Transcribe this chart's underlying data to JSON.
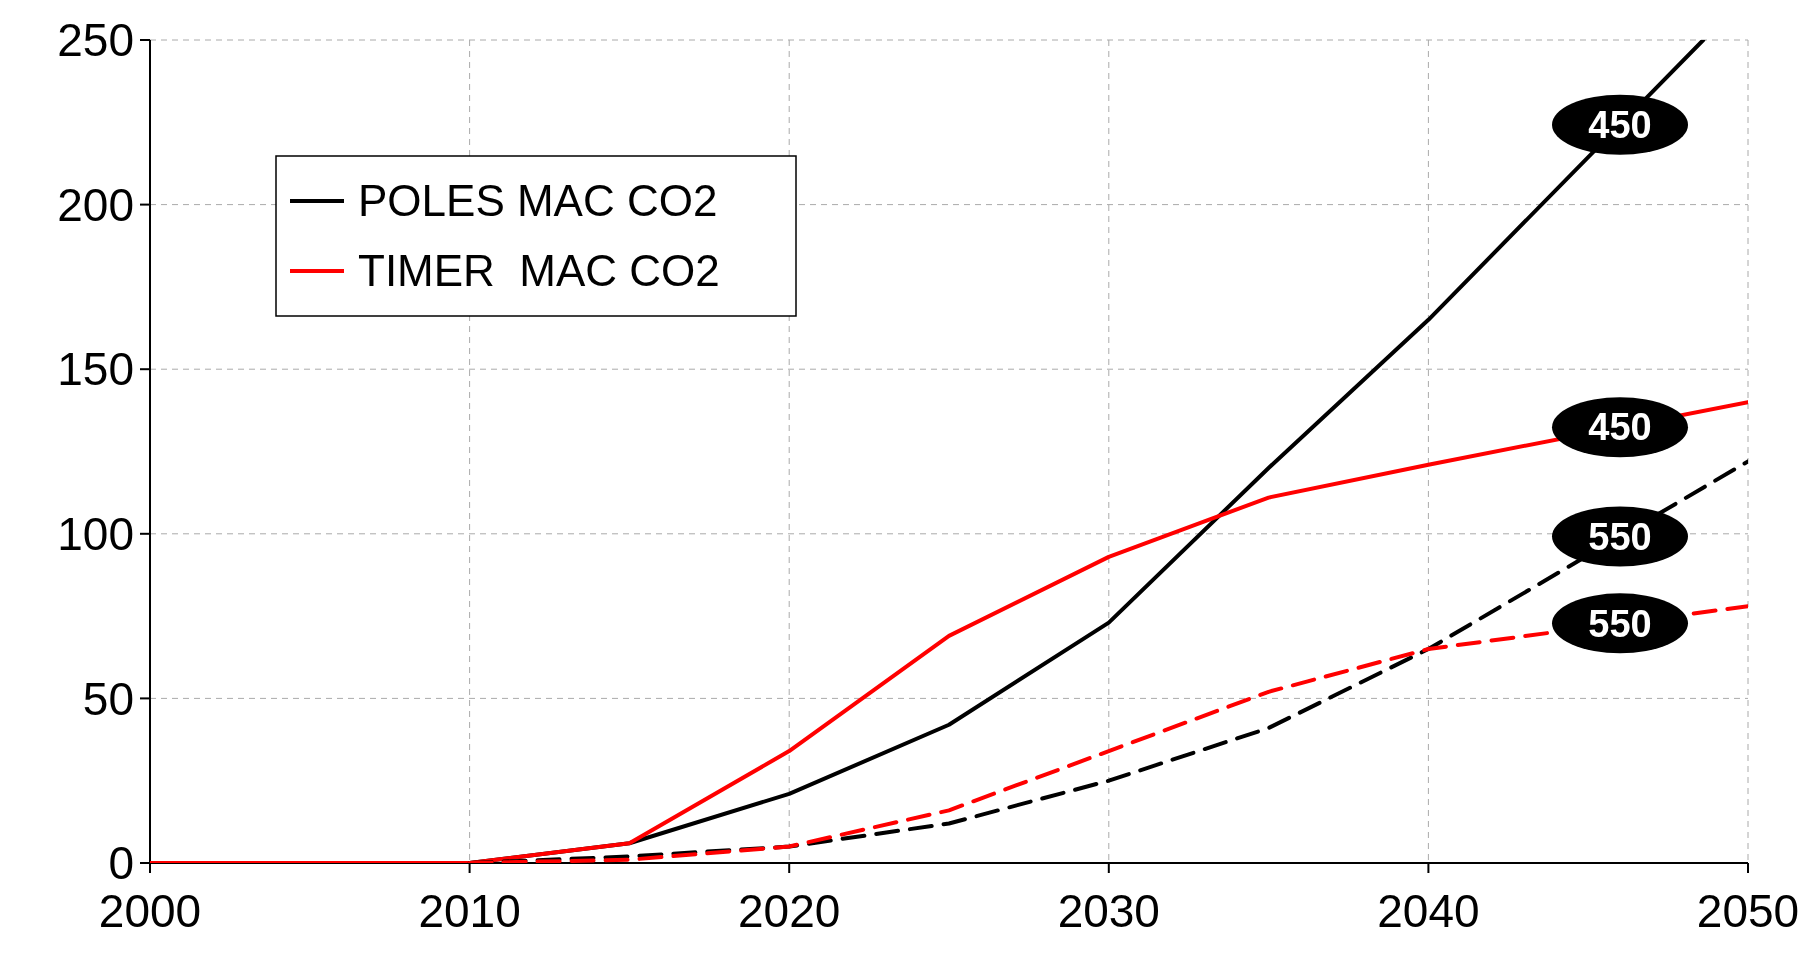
{
  "chart_data": {
    "type": "line",
    "xlim": [
      2000,
      2050
    ],
    "xticks": [
      2000,
      2010,
      2020,
      2030,
      2040,
      2050
    ],
    "ylim": [
      0,
      250
    ],
    "yticks": [
      0,
      50,
      100,
      150,
      200,
      250
    ],
    "grid": true,
    "legend": "top left",
    "series": [
      {
        "name": "POLES MAC CO2",
        "color": "#000000",
        "line_style": "solid",
        "x": [
          2000,
          2010,
          2015,
          2020,
          2025,
          2030,
          2035,
          2040,
          2048.6
        ],
        "values": [
          0,
          0,
          6,
          21,
          42,
          73,
          120,
          165,
          250
        ]
      },
      {
        "name": "TIMER  MAC CO2",
        "color": "#ff0000",
        "line_style": "solid",
        "x": [
          2000,
          2010,
          2015,
          2020,
          2025,
          2030,
          2035,
          2040,
          2050
        ],
        "values": [
          0,
          0,
          6,
          34,
          69,
          93,
          111,
          121,
          140
        ]
      },
      {
        "color": "#000000",
        "line_style": "dashed",
        "x": [
          2010,
          2015,
          2020,
          2025,
          2030,
          2035,
          2040,
          2050
        ],
        "values": [
          0,
          2,
          5,
          12,
          25,
          41,
          65,
          122
        ]
      },
      {
        "color": "#ff0000",
        "line_style": "dashed",
        "x": [
          2010,
          2015,
          2020,
          2025,
          2030,
          2035,
          2040,
          2050
        ],
        "values": [
          0,
          1,
          5,
          16,
          34,
          52,
          65,
          78
        ]
      }
    ],
    "annotations": [
      "450",
      "450",
      "550",
      "550"
    ]
  }
}
